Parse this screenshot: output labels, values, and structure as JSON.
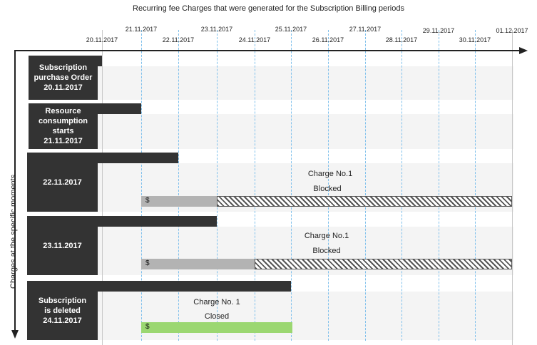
{
  "title": "Recurring fee Charges that were generated for the Subscription Billing periods",
  "y_axis_label": "Charges at the specific moments",
  "upper_dates": [
    "21.11.2017",
    "23.11.2017",
    "25.11.2017",
    "27.11.2017",
    "29.11.2017",
    "01.12.2017"
  ],
  "lower_dates": [
    "20.11.2017",
    "22.11.2017",
    "24.11.2017",
    "26.11.2017",
    "28.11.2017",
    "30.11.2017"
  ],
  "rows": [
    {
      "label": "Subscription\npurchase Order\n20.11.2017"
    },
    {
      "label": "Resource\nconsumption\nstarts\n21.11.2017"
    },
    {
      "label": "22.11.2017",
      "charge_currency": "$",
      "charge_title": "Charge No.1",
      "charge_status": "Blocked"
    },
    {
      "label": "23.11.2017",
      "charge_currency": "$",
      "charge_title": "Charge No.1",
      "charge_status": "Blocked"
    },
    {
      "label": "Subscription\nis deleted\n24.11.2017",
      "charge_currency": "$",
      "charge_title": "Charge No. 1",
      "charge_status": "Closed"
    }
  ],
  "colors": {
    "box": "#333333",
    "charge_grey": "#b3b3b3",
    "charge_closed": "#9bd771",
    "gridline": "#7fc0ec"
  }
}
